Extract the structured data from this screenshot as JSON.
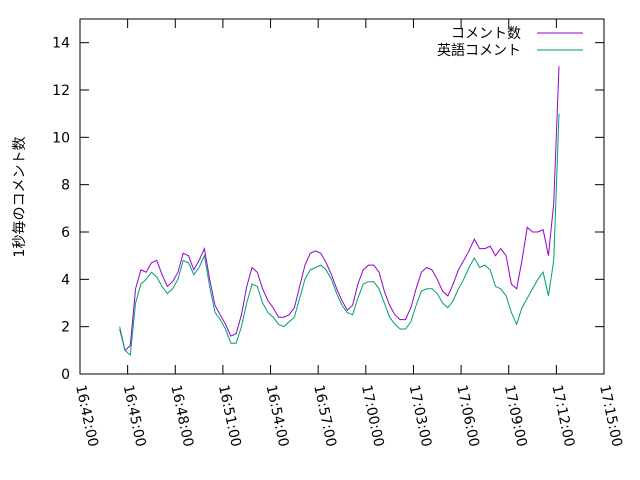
{
  "chart_data": {
    "type": "line",
    "ylabel": "1秒毎のコメント数",
    "xlim": [
      "16:42:00",
      "17:15:00"
    ],
    "xticks": [
      "16:42:00",
      "16:45:00",
      "16:48:00",
      "16:51:00",
      "16:54:00",
      "16:57:00",
      "17:00:00",
      "17:03:00",
      "17:06:00",
      "17:09:00",
      "17:12:00",
      "17:15:00"
    ],
    "ylim": [
      0,
      15
    ],
    "yticks": [
      0,
      2,
      4,
      6,
      8,
      10,
      12,
      14
    ],
    "legend": "top-right",
    "x": [
      "16:44:30",
      "16:44:50",
      "16:45:10",
      "16:45:30",
      "16:45:50",
      "16:46:10",
      "16:46:30",
      "16:46:50",
      "16:47:10",
      "16:47:30",
      "16:47:50",
      "16:48:10",
      "16:48:30",
      "16:48:50",
      "16:49:10",
      "16:49:30",
      "16:49:50",
      "16:50:10",
      "16:50:30",
      "16:50:50",
      "16:51:10",
      "16:51:30",
      "16:51:50",
      "16:52:10",
      "16:52:30",
      "16:52:50",
      "16:53:10",
      "16:53:30",
      "16:53:50",
      "16:54:10",
      "16:54:30",
      "16:54:50",
      "16:55:10",
      "16:55:30",
      "16:55:50",
      "16:56:10",
      "16:56:30",
      "16:56:50",
      "16:57:10",
      "16:57:30",
      "16:57:50",
      "16:58:10",
      "16:58:30",
      "16:58:50",
      "16:59:10",
      "16:59:30",
      "16:59:50",
      "17:00:10",
      "17:00:30",
      "17:00:50",
      "17:01:10",
      "17:01:30",
      "17:01:50",
      "17:02:10",
      "17:02:30",
      "17:02:50",
      "17:03:10",
      "17:03:30",
      "17:03:50",
      "17:04:10",
      "17:04:30",
      "17:04:50",
      "17:05:10",
      "17:05:30",
      "17:05:50",
      "17:06:10",
      "17:06:30",
      "17:06:50",
      "17:07:10",
      "17:07:30",
      "17:07:50",
      "17:08:10",
      "17:08:30",
      "17:08:50",
      "17:09:10",
      "17:09:30",
      "17:09:50",
      "17:10:10",
      "17:10:30",
      "17:10:50",
      "17:11:10",
      "17:11:30",
      "17:11:50",
      "17:12:10"
    ],
    "series": [
      {
        "name": "コメント数",
        "color": "#9400d3",
        "values": [
          1.9,
          1.0,
          1.2,
          3.6,
          4.4,
          4.3,
          4.7,
          4.8,
          4.2,
          3.7,
          3.9,
          4.3,
          5.1,
          5.0,
          4.4,
          4.8,
          5.3,
          4.0,
          2.9,
          2.5,
          2.1,
          1.6,
          1.7,
          2.5,
          3.7,
          4.5,
          4.3,
          3.6,
          3.1,
          2.8,
          2.4,
          2.4,
          2.5,
          2.8,
          3.7,
          4.6,
          5.1,
          5.2,
          5.1,
          4.7,
          4.2,
          3.6,
          3.1,
          2.7,
          2.9,
          3.8,
          4.4,
          4.6,
          4.6,
          4.3,
          3.5,
          2.9,
          2.5,
          2.3,
          2.3,
          2.8,
          3.6,
          4.3,
          4.5,
          4.4,
          4.0,
          3.5,
          3.3,
          3.8,
          4.4,
          4.8,
          5.2,
          5.7,
          5.3,
          5.3,
          5.4,
          5.0,
          5.3,
          5.0,
          3.8,
          3.6,
          4.8,
          6.2,
          6.0,
          6.0,
          6.1,
          5.0,
          7.2,
          13.0
        ]
      },
      {
        "name": "英語コメント",
        "color": "#009e73",
        "values": [
          2.0,
          1.0,
          0.8,
          3.0,
          3.8,
          4.0,
          4.3,
          4.1,
          3.7,
          3.4,
          3.6,
          4.0,
          4.8,
          4.7,
          4.2,
          4.5,
          5.0,
          3.7,
          2.6,
          2.3,
          1.9,
          1.3,
          1.3,
          2.0,
          3.0,
          3.8,
          3.7,
          3.0,
          2.6,
          2.4,
          2.1,
          2.0,
          2.2,
          2.4,
          3.2,
          4.0,
          4.4,
          4.5,
          4.6,
          4.4,
          4.0,
          3.4,
          2.9,
          2.6,
          2.5,
          3.2,
          3.8,
          3.9,
          3.9,
          3.6,
          3.0,
          2.4,
          2.1,
          1.9,
          1.9,
          2.2,
          2.9,
          3.5,
          3.6,
          3.6,
          3.4,
          3.0,
          2.8,
          3.1,
          3.6,
          4.0,
          4.5,
          4.9,
          4.5,
          4.6,
          4.4,
          3.7,
          3.6,
          3.3,
          2.6,
          2.1,
          2.8,
          3.2,
          3.6,
          4.0,
          4.3,
          3.3,
          4.8,
          11.0
        ]
      }
    ]
  }
}
